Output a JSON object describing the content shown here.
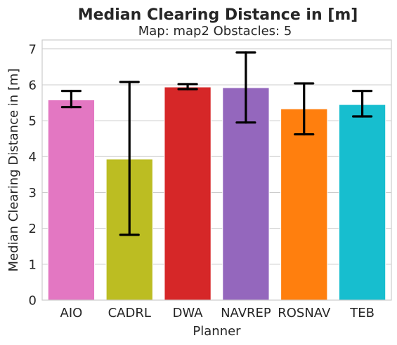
{
  "chart_data": {
    "type": "bar",
    "title": "Median Clearing Distance in [m]",
    "subtitle": "Map: map2 Obstacles: 5",
    "xlabel": "Planner",
    "ylabel": "Median Clearing Distance in [m]",
    "ylim": [
      0,
      7.25
    ],
    "yticks": [
      0,
      1,
      2,
      3,
      4,
      5,
      6,
      7
    ],
    "grid": true,
    "categories": [
      "AIO",
      "CADRL",
      "DWA",
      "NAVREP",
      "ROSNAV",
      "TEB"
    ],
    "values": [
      5.58,
      3.93,
      5.94,
      5.92,
      5.33,
      5.45
    ],
    "error_low": [
      5.38,
      1.82,
      5.88,
      4.95,
      4.62,
      5.12
    ],
    "error_high": [
      5.83,
      6.08,
      6.02,
      6.9,
      6.04,
      5.83
    ],
    "colors": [
      "#e377c2",
      "#bcbd22",
      "#d62728",
      "#9467bd",
      "#ff7f0e",
      "#17becf"
    ]
  }
}
